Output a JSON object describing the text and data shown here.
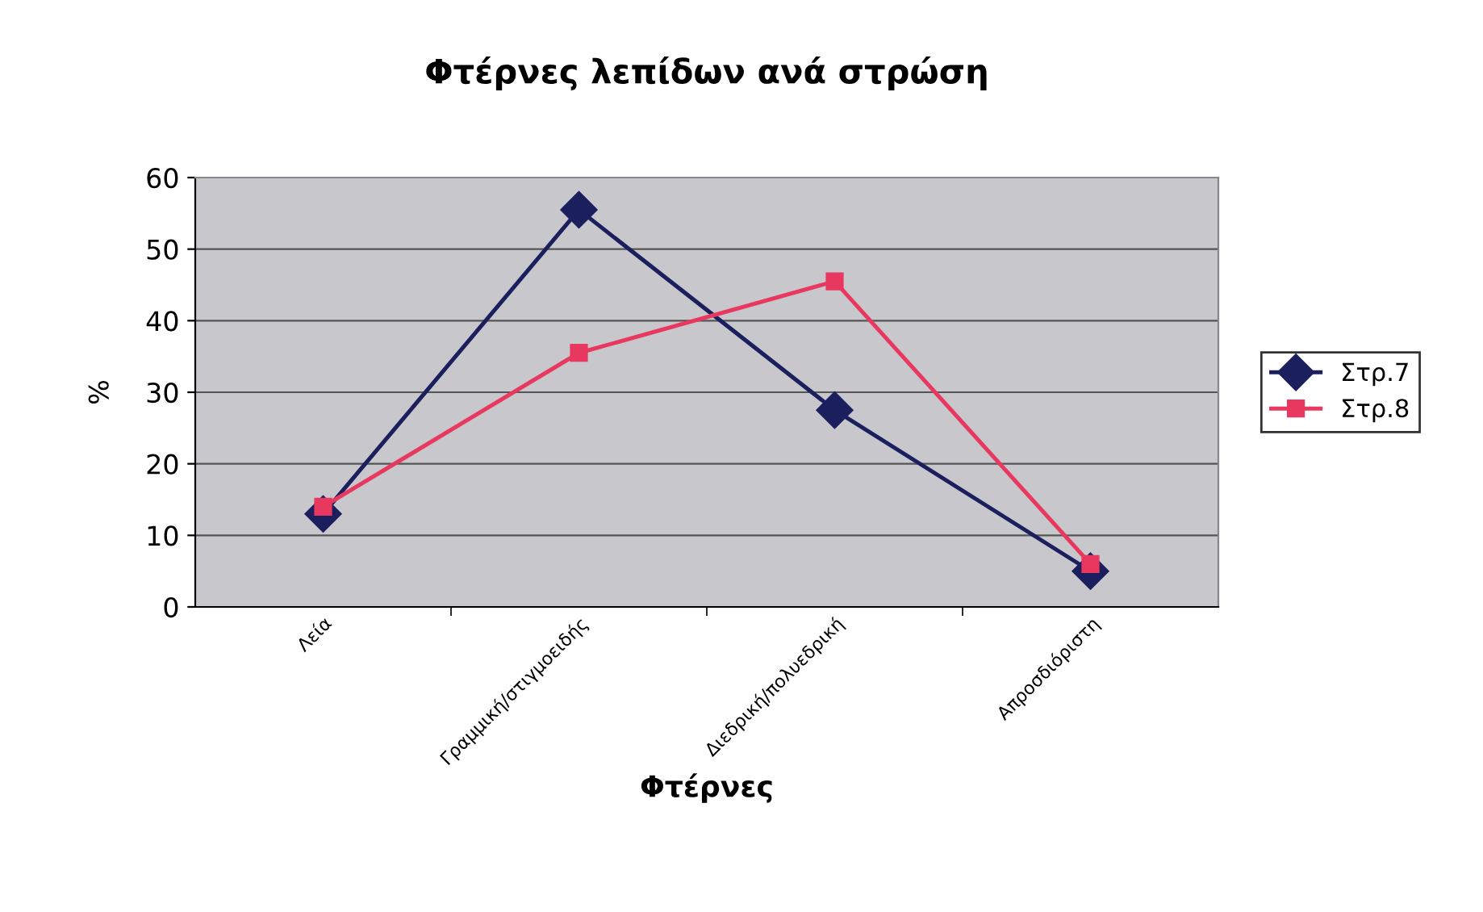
{
  "chart_data": {
    "type": "line",
    "title": "Φτέρνες λεπίδων ανά στρώση",
    "xlabel": "Φτέρνες",
    "ylabel": "%",
    "categories": [
      "Λεία",
      "Γραμμική/στιγμοειδής",
      "Διεδρική/πολυεδρική",
      "Απροσδιόριστη"
    ],
    "series": [
      {
        "name": "Στρ.7",
        "color": "#1c1f5e",
        "marker": "diamond",
        "values": [
          13,
          55.5,
          27.5,
          5
        ]
      },
      {
        "name": "Στρ.8",
        "color": "#e8385f",
        "marker": "square",
        "values": [
          14,
          35.5,
          45.5,
          6
        ]
      }
    ],
    "ylim": [
      0,
      60
    ],
    "yticks": [
      0,
      10,
      20,
      30,
      40,
      50,
      60
    ],
    "grid": "y",
    "legend": "right"
  }
}
